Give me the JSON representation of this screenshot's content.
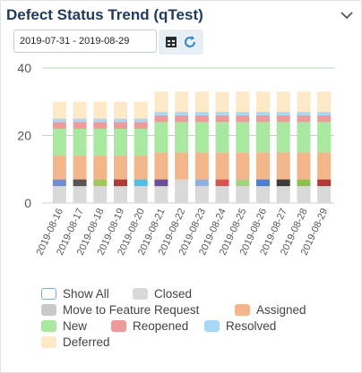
{
  "widget": {
    "title": "Defect Status Trend (qTest)",
    "date_range": "2019-07-31 - 2019-08-29",
    "icons": {
      "collapse": "chevron-down-icon",
      "calendar": "calendar-icon",
      "refresh": "refresh-icon"
    }
  },
  "chart_data": {
    "type": "bar",
    "stacked": true,
    "categories": [
      "2019-08-16",
      "2019-08-17",
      "2019-08-18",
      "2019-08-19",
      "2019-08-20",
      "2019-08-21",
      "2019-08-22",
      "2019-08-23",
      "2019-08-24",
      "2019-08-25",
      "2019-08-26",
      "2019-08-27",
      "2019-08-28",
      "2019-08-29"
    ],
    "ylim": [
      0,
      40
    ],
    "yticks": [
      0,
      20,
      40
    ],
    "grid": true,
    "legend_position": "bottom",
    "series": [
      {
        "name": "Closed",
        "color": "#d9d9d9",
        "values": [
          5,
          5,
          5,
          5,
          5,
          5,
          5,
          5,
          5,
          5,
          5,
          5,
          5,
          5
        ]
      },
      {
        "name": "Move to Feature Request",
        "color": "#c9c9c9",
        "values": [
          0,
          0,
          0,
          0,
          0,
          0,
          0,
          0,
          0,
          0,
          0,
          0,
          0,
          0
        ]
      },
      {
        "name": "Assigned",
        "color": "#f3b68a",
        "values": [
          7,
          7,
          7,
          7,
          7,
          8,
          8,
          8,
          8,
          8,
          8,
          8,
          8,
          8
        ]
      },
      {
        "name": "New",
        "color": "#a8e8a0",
        "values": [
          8,
          8,
          8,
          8,
          8,
          9,
          9,
          9,
          9,
          9,
          9,
          9,
          9,
          9
        ]
      },
      {
        "name": "Reopened",
        "color": "#ee9a9a",
        "values": [
          2,
          2,
          2,
          2,
          2,
          2,
          2,
          2,
          2,
          2,
          2,
          2,
          2,
          2
        ]
      },
      {
        "name": "Resolved",
        "color": "#a8d8f5",
        "values": [
          1,
          1,
          1,
          1,
          1,
          1,
          1,
          1,
          1,
          1,
          1,
          1,
          1,
          1
        ]
      },
      {
        "name": "Deferred",
        "color": "#fde8c8",
        "values": [
          5,
          5,
          5,
          5,
          5,
          6,
          6,
          6,
          6,
          6,
          6,
          6,
          6,
          6
        ]
      }
    ],
    "extra_segment": {
      "colors": [
        "#6d8fd1",
        "#555555",
        "#9ec85a",
        "#b03a3a",
        "#4fc1e9",
        "#6b4f9a",
        "#d9d9d9",
        "#8fb0e3",
        "#d9534f",
        "#a3d37a",
        "#4a7fd4",
        "#3b3b3b",
        "#8bc34a",
        "#b03a3a"
      ],
      "values": [
        2,
        2,
        2,
        2,
        2,
        2,
        2,
        2,
        2,
        2,
        2,
        2,
        2,
        2
      ]
    }
  },
  "legend": {
    "show_all": "Show All",
    "items": [
      "Closed",
      "Move to Feature Request",
      "Assigned",
      "New",
      "Reopened",
      "Resolved",
      "Deferred"
    ]
  }
}
